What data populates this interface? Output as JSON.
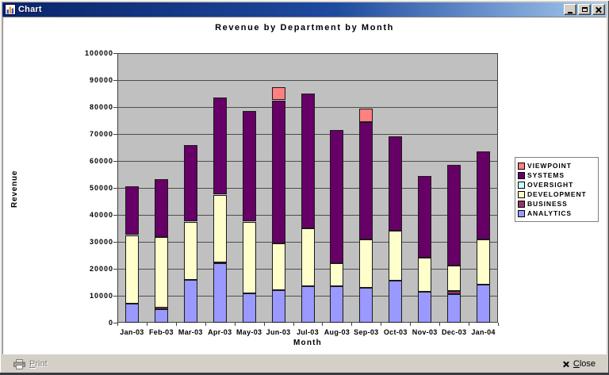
{
  "window": {
    "title": "Chart",
    "icon": "bar-chart-icon",
    "controls": {
      "minimize": "minimize-icon",
      "maximize": "maximize-icon",
      "close": "close-icon"
    }
  },
  "footer": {
    "print": {
      "initial": "P",
      "rest": "rint",
      "disabled": true,
      "icon": "printer-icon"
    },
    "close": {
      "initial": "C",
      "rest": "lose",
      "icon": "close-x-icon"
    }
  },
  "chart_data": {
    "type": "bar",
    "stacked": true,
    "title": "Revenue by Department by Month",
    "xlabel": "Month",
    "ylabel": "Revenue",
    "ylim": [
      0,
      100000
    ],
    "ytick_interval": 10000,
    "grid": true,
    "legend_position": "right",
    "plot_bg_color": "#C0C0C0",
    "categories": [
      "Jan-03",
      "Feb-03",
      "Mar-03",
      "Apr-03",
      "May-03",
      "Jun-03",
      "Jul-03",
      "Aug-03",
      "Sep-03",
      "Oct-03",
      "Nov-03",
      "Dec-03",
      "Jan-04"
    ],
    "series": [
      {
        "name": "ANALYTICS",
        "color": "#9999FF",
        "values": [
          7000,
          5000,
          16000,
          22000,
          11000,
          12000,
          13500,
          13500,
          13000,
          15500,
          11500,
          10500,
          14000
        ]
      },
      {
        "name": "BUSINESS",
        "color": "#993366",
        "values": [
          0,
          700,
          0,
          500,
          0,
          0,
          0,
          0,
          0,
          0,
          0,
          1200,
          0
        ]
      },
      {
        "name": "DEVELOPMENT",
        "color": "#FFFFCC",
        "values": [
          25500,
          26000,
          21500,
          25000,
          26500,
          17500,
          21500,
          8500,
          18000,
          18500,
          12500,
          9500,
          17000
        ]
      },
      {
        "name": "OVERSIGHT",
        "color": "#CCFFFF",
        "values": [
          0,
          0,
          0,
          0,
          0,
          0,
          0,
          0,
          0,
          0,
          0,
          0,
          0
        ]
      },
      {
        "name": "SYSTEMS",
        "color": "#660066",
        "values": [
          18000,
          21500,
          28500,
          36000,
          41000,
          53000,
          50000,
          49500,
          43500,
          35000,
          30500,
          37300,
          32500
        ]
      },
      {
        "name": "VIEWPOINT",
        "color": "#FF8080",
        "values": [
          0,
          0,
          0,
          0,
          0,
          4800,
          0,
          0,
          4800,
          0,
          0,
          0,
          0
        ]
      }
    ],
    "legend_order": [
      "VIEWPOINT",
      "SYSTEMS",
      "OVERSIGHT",
      "DEVELOPMENT",
      "BUSINESS",
      "ANALYTICS"
    ],
    "totals": [
      50500,
      53200,
      66000,
      83500,
      78500,
      87300,
      85000,
      71500,
      79300,
      69000,
      54500,
      58500,
      63500
    ]
  }
}
